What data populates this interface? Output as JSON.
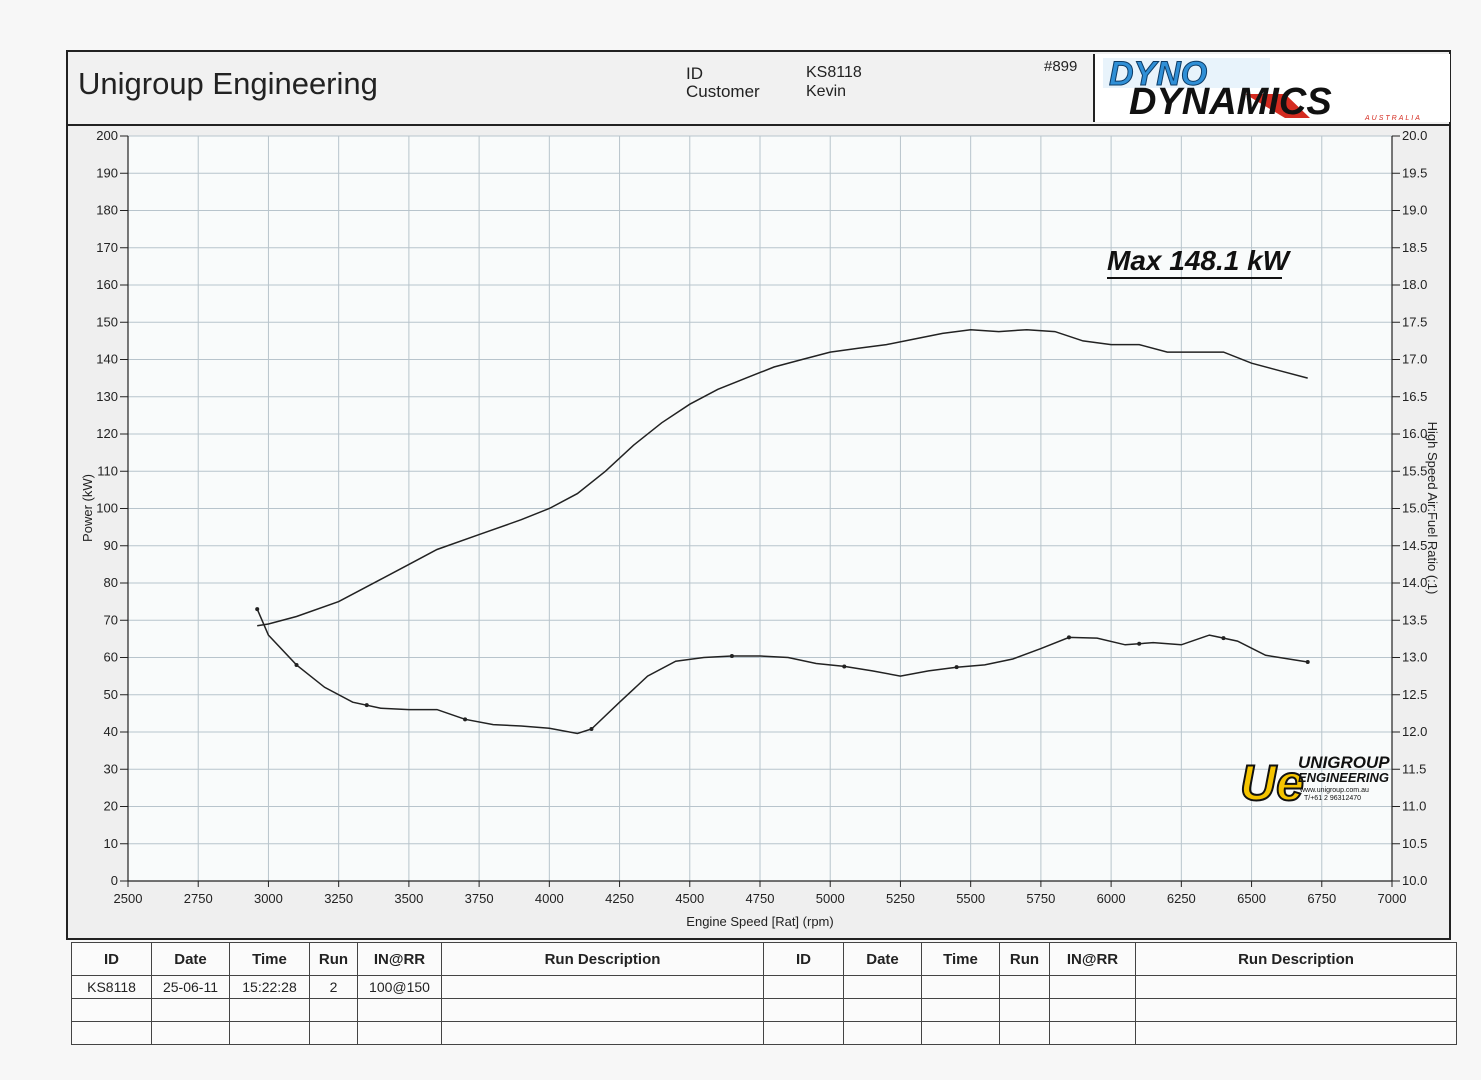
{
  "header": {
    "company": "Unigroup Engineering",
    "id_label": "ID",
    "id_value": "KS8118",
    "customer_label": "Customer",
    "customer_value": "Kevin",
    "report_no": "#899",
    "logo_line1": "DYNO",
    "logo_line2": "DYNAMICS",
    "logo_sub": "AUSTRALIA"
  },
  "annotation": {
    "max_text": "Max 148.1 kW"
  },
  "watermark_logo": {
    "mark": "Ue",
    "line1": "UNIGROUP",
    "line2": "ENGINEERING",
    "line3": "www.unigroup.com.au",
    "line4": "T/+61 2 96312470"
  },
  "colors": {
    "line": "#222222",
    "grid": "#b8c4cc",
    "plot_bg": "#f9fbfb",
    "logo_blue": "#2f8fd6",
    "logo_red": "#d42b20",
    "ue_yellow": "#f5c400"
  },
  "chart_data": {
    "type": "line",
    "xlabel": "Engine Speed [Rat] (rpm)",
    "ylabel": "Power (kW)",
    "y2label": "High Speed Air:Fuel Ratio (:1)",
    "xlim": [
      2500,
      7000
    ],
    "ylim": [
      0,
      200
    ],
    "y2lim": [
      10.0,
      20.0
    ],
    "x_ticks": [
      2500,
      2750,
      3000,
      3250,
      3500,
      3750,
      4000,
      4250,
      4500,
      4750,
      5000,
      5250,
      5500,
      5750,
      6000,
      6250,
      6500,
      6750,
      7000
    ],
    "y_ticks": [
      0,
      10,
      20,
      30,
      40,
      50,
      60,
      70,
      80,
      90,
      100,
      110,
      120,
      130,
      140,
      150,
      160,
      170,
      180,
      190,
      200
    ],
    "y2_ticks": [
      "10.0",
      "10.5",
      "11.0",
      "11.5",
      "12.0",
      "12.5",
      "13.0",
      "13.5",
      "14.0",
      "14.5",
      "15.0",
      "15.5",
      "16.0",
      "16.5",
      "17.0",
      "17.5",
      "18.0",
      "18.5",
      "19.0",
      "19.5",
      "20.0"
    ],
    "grid": true,
    "series": [
      {
        "axis": "left",
        "points": [
          [
            2960,
            68.5
          ],
          [
            3000,
            69
          ],
          [
            3100,
            71
          ],
          [
            3250,
            75
          ],
          [
            3400,
            81
          ],
          [
            3500,
            85
          ],
          [
            3600,
            89
          ],
          [
            3750,
            93
          ],
          [
            3900,
            97
          ],
          [
            4000,
            100
          ],
          [
            4100,
            104
          ],
          [
            4200,
            110
          ],
          [
            4300,
            117
          ],
          [
            4400,
            123
          ],
          [
            4500,
            128
          ],
          [
            4600,
            132
          ],
          [
            4700,
            135
          ],
          [
            4800,
            138
          ],
          [
            4900,
            140
          ],
          [
            5000,
            142
          ],
          [
            5100,
            143
          ],
          [
            5200,
            144
          ],
          [
            5300,
            145.5
          ],
          [
            5400,
            147
          ],
          [
            5500,
            148
          ],
          [
            5600,
            147.5
          ],
          [
            5700,
            148
          ],
          [
            5800,
            147.5
          ],
          [
            5900,
            145
          ],
          [
            6000,
            144
          ],
          [
            6100,
            144
          ],
          [
            6200,
            142
          ],
          [
            6300,
            142
          ],
          [
            6400,
            142
          ],
          [
            6500,
            139
          ],
          [
            6600,
            137
          ],
          [
            6700,
            135
          ]
        ]
      },
      {
        "axis": "right",
        "points": [
          [
            2960,
            13.65
          ],
          [
            3000,
            13.3
          ],
          [
            3100,
            12.9
          ],
          [
            3200,
            12.6
          ],
          [
            3300,
            12.4
          ],
          [
            3400,
            12.32
          ],
          [
            3500,
            12.3
          ],
          [
            3600,
            12.3
          ],
          [
            3700,
            12.17
          ],
          [
            3800,
            12.1
          ],
          [
            3900,
            12.08
          ],
          [
            4000,
            12.05
          ],
          [
            4100,
            11.98
          ],
          [
            4150,
            12.04
          ],
          [
            4250,
            12.4
          ],
          [
            4350,
            12.75
          ],
          [
            4450,
            12.95
          ],
          [
            4550,
            13.0
          ],
          [
            4650,
            13.02
          ],
          [
            4750,
            13.02
          ],
          [
            4850,
            13.0
          ],
          [
            4950,
            12.92
          ],
          [
            5050,
            12.88
          ],
          [
            5150,
            12.82
          ],
          [
            5250,
            12.75
          ],
          [
            5350,
            12.82
          ],
          [
            5450,
            12.87
          ],
          [
            5550,
            12.9
          ],
          [
            5650,
            12.98
          ],
          [
            5750,
            13.12
          ],
          [
            5850,
            13.27
          ],
          [
            5950,
            13.26
          ],
          [
            6050,
            13.17
          ],
          [
            6150,
            13.2
          ],
          [
            6250,
            13.17
          ],
          [
            6350,
            13.3
          ],
          [
            6450,
            13.22
          ],
          [
            6550,
            13.03
          ],
          [
            6700,
            12.94
          ]
        ],
        "markers": [
          2960,
          3100,
          3350,
          3700,
          4150,
          4650,
          5050,
          5450,
          5850,
          6100,
          6400,
          6700
        ]
      }
    ]
  },
  "table": {
    "headers": [
      "ID",
      "Date",
      "Time",
      "Run",
      "IN@RR",
      "Run Description",
      "ID",
      "Date",
      "Time",
      "Run",
      "IN@RR",
      "Run Description"
    ],
    "rows": [
      [
        "KS8118",
        "25-06-11",
        "15:22:28",
        "2",
        "100@150",
        "",
        "",
        "",
        "",
        "",
        "",
        ""
      ],
      [
        "",
        "",
        "",
        "",
        "",
        "",
        "",
        "",
        "",
        "",
        "",
        ""
      ],
      [
        "",
        "",
        "",
        "",
        "",
        "",
        "",
        "",
        "",
        "",
        "",
        ""
      ]
    ]
  }
}
